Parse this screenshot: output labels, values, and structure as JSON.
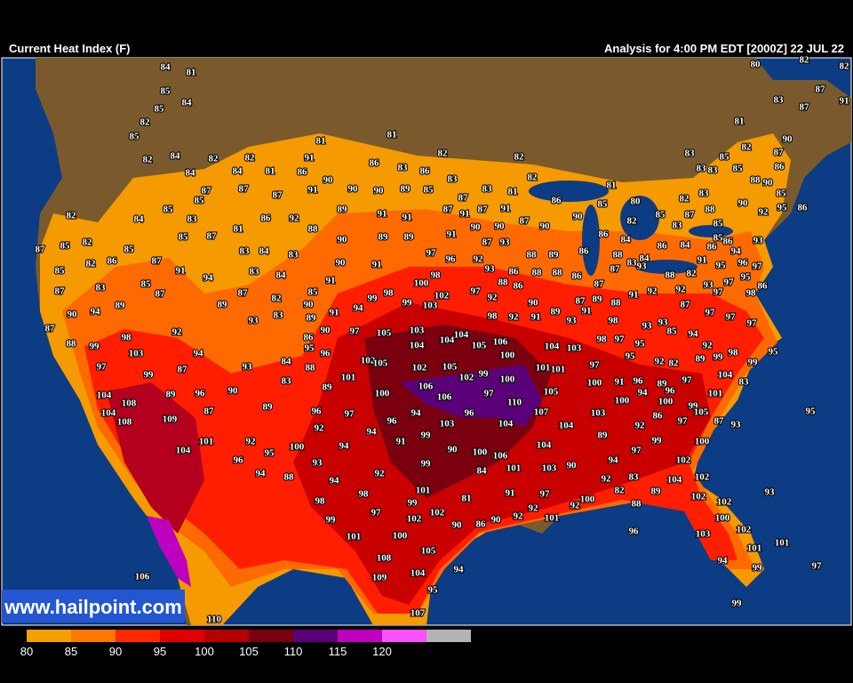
{
  "header": {
    "title": "Current Heat Index (F)",
    "analysis": "Analysis for 4:00 PM EDT [2000Z] 22 JUL 22"
  },
  "watermark": "www.hailpoint.com",
  "legend": {
    "labels": [
      "80",
      "85",
      "90",
      "95",
      "100",
      "105",
      "110",
      "115",
      "120"
    ],
    "colors": [
      "#f5a000",
      "#ff7800",
      "#ff2800",
      "#e00000",
      "#b40000",
      "#7a0010",
      "#5a0078",
      "#c000c0",
      "#ff50ff"
    ],
    "end_color": "#b4b4b4"
  },
  "stations": [
    84,
    81,
    85,
    84,
    85,
    82,
    85,
    82,
    84,
    84,
    82,
    82,
    84,
    81,
    86,
    81,
    91,
    90,
    91,
    87,
    85,
    87,
    87,
    81,
    86,
    83,
    86,
    82,
    82,
    82,
    83,
    90,
    90,
    89,
    85,
    87,
    83,
    81,
    81,
    86,
    80,
    82,
    83,
    83,
    83,
    85,
    83,
    81,
    82,
    85,
    88,
    90,
    90,
    92,
    95,
    86,
    85,
    86,
    87,
    90,
    83,
    87,
    87,
    91,
    82,
    80,
    82,
    85,
    82,
    84,
    85,
    83,
    87,
    85,
    82,
    82,
    86,
    85,
    85,
    87,
    81,
    86,
    92,
    88,
    89,
    91,
    91,
    87,
    91,
    87,
    90,
    90,
    91,
    87,
    90,
    90,
    85,
    85,
    87,
    88,
    82,
    83,
    85,
    86,
    93,
    94,
    90,
    89,
    89,
    91,
    87,
    93,
    86,
    84,
    86,
    84,
    86,
    85,
    87,
    91,
    94,
    83,
    84,
    83,
    83,
    84,
    97,
    96,
    92,
    93,
    86,
    88,
    89,
    86,
    88,
    84,
    83,
    93,
    91,
    95,
    96,
    97,
    90,
    91,
    83,
    85,
    87,
    87,
    85,
    91,
    100,
    98,
    97,
    88,
    86,
    88,
    88,
    86,
    87,
    88,
    82,
    97,
    95,
    86,
    97,
    92,
    93,
    98,
    87,
    92,
    91,
    87,
    90,
    94,
    89,
    89,
    82,
    90,
    99,
    98,
    99,
    102,
    103,
    92,
    90,
    89,
    87,
    89,
    88,
    87,
    97,
    97,
    97,
    93,
    83,
    89,
    91,
    94,
    87,
    88,
    99,
    98,
    103,
    92,
    86,
    95,
    90,
    97,
    105,
    103,
    104,
    104,
    104,
    105,
    106,
    100,
    98,
    92,
    91,
    91,
    93,
    98,
    93,
    93,
    85,
    94,
    104,
    103,
    98,
    97,
    95,
    92,
    98,
    99,
    89,
    95,
    99,
    97,
    99,
    87,
    94,
    93,
    84,
    96,
    88,
    102,
    105,
    102,
    105,
    99,
    102,
    100,
    101,
    101,
    101,
    97,
    95,
    92,
    82,
    104,
    83,
    83,
    89,
    100,
    106,
    106,
    97,
    110,
    105,
    100,
    91,
    96,
    89,
    97,
    94,
    96,
    100,
    101,
    104,
    108,
    89,
    96,
    90,
    104,
    108,
    109,
    87,
    89,
    96,
    97,
    94,
    96,
    104,
    107,
    103,
    92,
    86,
    99,
    105,
    97,
    87,
    93,
    95,
    100,
    101,
    92,
    95,
    100,
    92,
    94,
    96,
    91,
    99,
    103,
    104,
    104,
    89,
    99,
    97,
    100,
    104,
    96,
    94,
    90,
    100,
    106,
    101,
    103,
    90,
    94,
    102,
    93,
    99,
    92,
    84,
    94,
    88,
    94,
    83,
    92,
    102,
    104,
    82,
    89,
    88,
    98,
    101,
    99,
    81,
    91,
    97,
    100,
    92,
    102,
    102,
    93,
    98,
    97,
    102,
    102,
    92,
    99,
    90,
    86,
    90,
    92,
    101,
    100,
    96,
    102,
    101,
    100,
    103,
    105,
    101,
    101,
    108,
    94,
    99,
    97,
    94,
    106,
    109,
    104,
    95,
    107,
    110,
    99
  ]
}
